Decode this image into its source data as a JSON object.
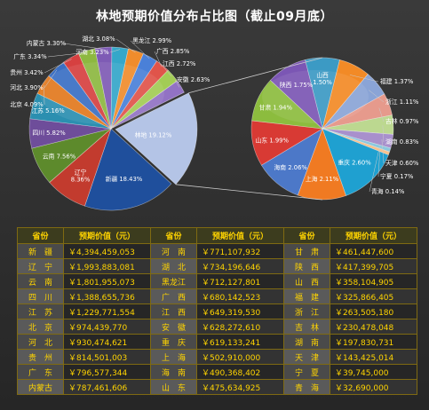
{
  "title": "林地预期价值分布占比图（截止09月底）",
  "colors": {
    "label_text": "#ffffff",
    "leader_line": "#cccccc",
    "table_text": "#ffd400",
    "table_border": "#7f6a12"
  },
  "chart_data": [
    {
      "type": "pie",
      "title": "",
      "unit": "%",
      "slices": [
        {
          "label": "新疆 18.43%",
          "name": "新疆",
          "value": 18.43,
          "color": "#1f4f9c"
        },
        {
          "label": "辽宁\n8.36%",
          "name": "辽宁",
          "value": 8.36,
          "color": "#c23b2e"
        },
        {
          "label": "云南 7.56%",
          "name": "云南",
          "value": 7.56,
          "color": "#5d8a2c"
        },
        {
          "label": "四川 5.82%",
          "name": "四川",
          "value": 5.82,
          "color": "#6e4d9a"
        },
        {
          "label": "江苏 5.16%",
          "name": "江苏",
          "value": 5.16,
          "color": "#2b8fb0"
        },
        {
          "label": "北京 4.09%",
          "name": "北京",
          "value": 4.09,
          "color": "#e2791e"
        },
        {
          "label": "河北 3.90%",
          "name": "河北",
          "value": 3.9,
          "color": "#3a6fc4"
        },
        {
          "label": "贵州 3.42%",
          "name": "贵州",
          "value": 3.42,
          "color": "#d64040"
        },
        {
          "label": "广东 3.34%",
          "name": "广东",
          "value": 3.34,
          "color": "#8db840"
        },
        {
          "label": "内蒙古 3.30%",
          "name": "内蒙古",
          "value": 3.3,
          "color": "#7e5bb5"
        },
        {
          "label": "河南 3.23%",
          "name": "河南",
          "value": 3.23,
          "color": "#35a7c9"
        },
        {
          "label": "湖北 3.08%",
          "name": "湖北",
          "value": 3.08,
          "color": "#f08c2c"
        },
        {
          "label": "黑龙江 2.99%",
          "name": "黑龙江",
          "value": 2.99,
          "color": "#4a80d8"
        },
        {
          "label": "广西 2.85%",
          "name": "广西",
          "value": 2.85,
          "color": "#e0544a"
        },
        {
          "label": "江西 2.72%",
          "name": "江西",
          "value": 2.72,
          "color": "#a2cc55"
        },
        {
          "label": "安徽 2.63%",
          "name": "安徽",
          "value": 2.63,
          "color": "#9272c4"
        },
        {
          "label": "林地 19.12%",
          "name": "林地",
          "value": 19.12,
          "color": "#b4c4e6"
        }
      ]
    },
    {
      "type": "pie",
      "title": "",
      "unit": "%",
      "slices": [
        {
          "label": "山西\n1.50%",
          "name": "山西",
          "value": 1.5,
          "color": "#3c9ac4"
        },
        {
          "label": "福建 1.37%",
          "name": "福建",
          "value": 1.37,
          "color": "#f28a26"
        },
        {
          "label": "浙江 1.11%",
          "name": "浙江",
          "value": 1.11,
          "color": "#8aa4d6"
        },
        {
          "label": "吉林 0.97%",
          "name": "吉林",
          "value": 0.97,
          "color": "#e69a8c"
        },
        {
          "label": "湖南 0.83%",
          "name": "湖南",
          "value": 0.83,
          "color": "#bcd890"
        },
        {
          "label": "天津 0.60%",
          "name": "天津",
          "value": 0.6,
          "color": "#a890cc"
        },
        {
          "label": "宁夏 0.17%",
          "name": "宁夏",
          "value": 0.17,
          "color": "#8cc8de"
        },
        {
          "label": "青海 0.14%",
          "name": "青海",
          "value": 0.14,
          "color": "#f8c08a"
        },
        {
          "label": "重庆 2.60%",
          "name": "重庆",
          "value": 2.6,
          "color": "#1fa0d0"
        },
        {
          "label": "上海 2.11%",
          "name": "上海",
          "value": 2.11,
          "color": "#f07a22"
        },
        {
          "label": "海南 2.06%",
          "name": "海南",
          "value": 2.06,
          "color": "#4c78c8"
        },
        {
          "label": "山东 1.99%",
          "name": "山东",
          "value": 1.99,
          "color": "#d83a34"
        },
        {
          "label": "甘肃 1.94%",
          "name": "甘肃",
          "value": 1.94,
          "color": "#8cbc3e"
        },
        {
          "label": "陕西 1.75%",
          "name": "陕西",
          "value": 1.75,
          "color": "#7b56b4"
        }
      ]
    }
  ],
  "table": {
    "headers": [
      "省份",
      "预期价值（元）",
      "省份",
      "预期价值（元）",
      "省份",
      "预期价值（元）"
    ],
    "rows": [
      [
        "新　疆",
        "￥4,394,459,053",
        "河　南",
        "￥771,107,932",
        "甘　肃",
        "￥461,447,600"
      ],
      [
        "辽　宁",
        "￥1,993,883,081",
        "湖　北",
        "￥734,196,646",
        "陕　西",
        "￥417,399,705"
      ],
      [
        "云　南",
        "￥1,801,955,073",
        "黑龙江",
        "￥712,127,801",
        "山　西",
        "￥358,104,905"
      ],
      [
        "四　川",
        "￥1,388,655,736",
        "广　西",
        "￥680,142,523",
        "福　建",
        "￥325,866,405"
      ],
      [
        "江　苏",
        "￥1,229,771,554",
        "江　西",
        "￥649,319,530",
        "浙　江",
        "￥263,505,180"
      ],
      [
        "北　京",
        "￥974,439,770",
        "安　徽",
        "￥628,272,610",
        "吉　林",
        "￥230,478,048"
      ],
      [
        "河　北",
        "￥930,474,621",
        "重　庆",
        "￥619,133,241",
        "湖　南",
        "￥197,830,731"
      ],
      [
        "贵　州",
        "￥814,501,003",
        "上　海",
        "￥502,910,000",
        "天　津",
        "￥143,425,014"
      ],
      [
        "广　东",
        "￥796,577,344",
        "海　南",
        "￥490,368,402",
        "宁　夏",
        "￥39,745,000"
      ],
      [
        "内蒙古",
        "￥787,461,606",
        "山　东",
        "￥475,634,925",
        "青　海",
        "￥32,690,000"
      ]
    ]
  }
}
